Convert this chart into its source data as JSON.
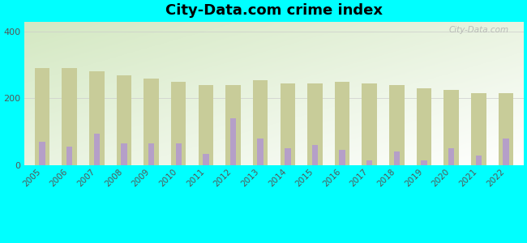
{
  "title": "City-Data.com crime index",
  "years": [
    2005,
    2006,
    2007,
    2008,
    2009,
    2010,
    2011,
    2012,
    2013,
    2014,
    2015,
    2016,
    2017,
    2018,
    2019,
    2020,
    2021,
    2022
  ],
  "monte_sereno": [
    70,
    55,
    95,
    65,
    65,
    65,
    35,
    140,
    80,
    50,
    60,
    45,
    15,
    40,
    15,
    50,
    30,
    80
  ],
  "us_average": [
    290,
    290,
    280,
    270,
    260,
    250,
    240,
    240,
    255,
    245,
    245,
    250,
    245,
    240,
    230,
    225,
    215,
    215
  ],
  "monte_sereno_color": "#b59fc8",
  "us_average_color": "#c8cc99",
  "background_color": "#00ffff",
  "ylim": [
    0,
    430
  ],
  "yticks": [
    0,
    200,
    400
  ],
  "title_fontsize": 13,
  "watermark": "City-Data.com"
}
